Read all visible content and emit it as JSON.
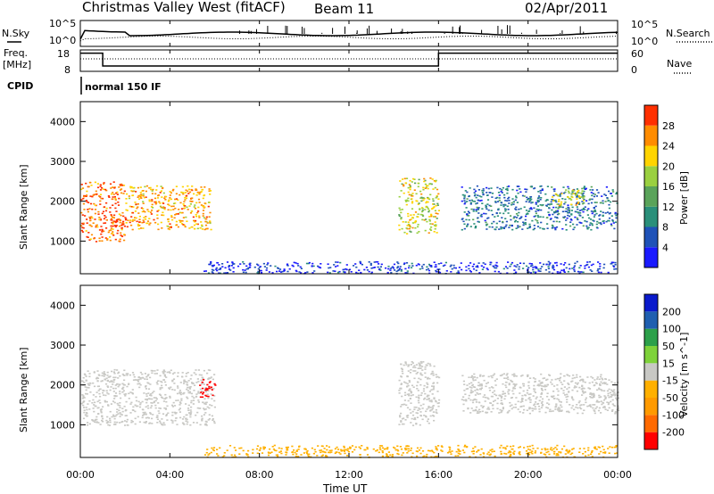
{
  "header": {
    "title": "Christmas Valley West (fitACF)",
    "beam": "Beam 11",
    "date": "02/Apr/2011"
  },
  "time_axis": {
    "label": "Time UT",
    "tick_labels": [
      "00:00",
      "04:00",
      "08:00",
      "12:00",
      "16:00",
      "20:00",
      "00:00"
    ]
  },
  "panels": {
    "nsky": {
      "left_label": "N.Sky",
      "right_label": "N.Search",
      "left_ticks": [
        "10^5",
        "10^0"
      ],
      "right_ticks": [
        "10^5",
        "10^0"
      ]
    },
    "freq": {
      "left_label_1": "Freq.",
      "left_label_2": "[MHz]",
      "right_label": "Nave",
      "left_ticks": [
        "18",
        "8"
      ],
      "right_ticks": [
        "60",
        "0"
      ]
    },
    "cpid": {
      "label": "CPID",
      "mode_text": "normal 150 IF"
    },
    "power": {
      "ylabel": "Slant Range [km]",
      "y_ticks": [
        "4000",
        "3000",
        "2000",
        "1000"
      ],
      "colorbar_label": "Power [dB]",
      "colorbar_ticks": [
        "28",
        "24",
        "20",
        "16",
        "12",
        "8",
        "4"
      ]
    },
    "velocity": {
      "ylabel": "Slant Range [km]",
      "y_ticks": [
        "4000",
        "3000",
        "2000",
        "1000"
      ],
      "colorbar_label": "Velocity [m s^-1]",
      "colorbar_ticks": [
        "200",
        "100",
        "50",
        "15",
        "-15",
        "-50",
        "-100",
        "-200"
      ]
    }
  },
  "chart_data": [
    {
      "type": "line",
      "name": "nsky_nsearch",
      "x_range_hours": [
        0,
        24
      ],
      "note_series": "N.Sky solid, N.Search dotted (log scale)",
      "ylim_log": [
        0,
        5
      ]
    },
    {
      "type": "line",
      "name": "freq_nave",
      "freq_ylim_mhz": [
        8,
        18
      ],
      "nave_ylim": [
        0,
        60
      ],
      "freq_segments": [
        {
          "from": 0.0,
          "to": 1.0,
          "value": 16.5
        },
        {
          "from": 1.0,
          "to": 16.0,
          "value": 10.5
        },
        {
          "from": 16.0,
          "to": 24.0,
          "value": 16.5
        }
      ]
    },
    {
      "type": "heatmap",
      "name": "power",
      "x_range_hours": [
        0,
        24
      ],
      "ylim_km": [
        180,
        4500
      ],
      "colorbar": {
        "bounds": [
          0,
          4,
          8,
          12,
          16,
          20,
          24,
          28,
          32
        ],
        "colors": [
          "#1a1aff",
          "#1f52b8",
          "#2a8f7a",
          "#5aa35a",
          "#9ad040",
          "#ffd400",
          "#ff8c00",
          "#ff3000"
        ]
      },
      "echo_regions": [
        {
          "t": [
            0.0,
            2.0
          ],
          "r": [
            1000,
            2500
          ],
          "level": 28
        },
        {
          "t": [
            2.0,
            5.8
          ],
          "r": [
            1300,
            2400
          ],
          "level": 24
        },
        {
          "t": [
            14.2,
            16.0
          ],
          "r": [
            1200,
            2600
          ],
          "level": 20
        },
        {
          "t": [
            17.0,
            24.0
          ],
          "r": [
            1300,
            2400
          ],
          "level": 8
        },
        {
          "t": [
            21.0,
            22.5
          ],
          "r": [
            1900,
            2300
          ],
          "level": 20
        },
        {
          "t": [
            5.5,
            24.0
          ],
          "r": [
            200,
            500
          ],
          "level": 4
        }
      ]
    },
    {
      "type": "heatmap",
      "name": "velocity",
      "x_range_hours": [
        0,
        24
      ],
      "ylim_km": [
        180,
        4500
      ],
      "colorbar": {
        "bounds": [
          -250,
          -200,
          -100,
          -50,
          -15,
          15,
          50,
          100,
          200,
          250
        ],
        "colors": [
          "#ff0000",
          "#ff6a00",
          "#ff9a00",
          "#ffb000",
          "#c8c8c4",
          "#7ed23a",
          "#2ca04a",
          "#1f5fb0",
          "#0a1acc"
        ]
      },
      "echo_regions": [
        {
          "t": [
            0.0,
            6.0
          ],
          "r": [
            1000,
            2400
          ],
          "level": 0
        },
        {
          "t": [
            5.3,
            6.0
          ],
          "r": [
            1700,
            2200
          ],
          "level": -220
        },
        {
          "t": [
            14.2,
            16.0
          ],
          "r": [
            1000,
            2600
          ],
          "level": 0
        },
        {
          "t": [
            17.0,
            24.0
          ],
          "r": [
            1300,
            2300
          ],
          "level": 0
        },
        {
          "t": [
            5.5,
            24.0
          ],
          "r": [
            200,
            500
          ],
          "level": -30
        }
      ]
    }
  ]
}
